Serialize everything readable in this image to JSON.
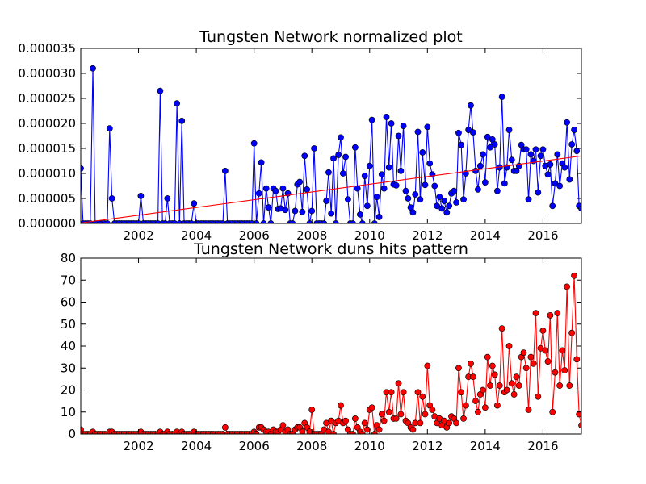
{
  "chart_data": [
    {
      "type": "line",
      "title": "Tungsten Network normalized plot",
      "xlabel": "",
      "ylabel": "",
      "xlim": [
        2000.0,
        2017.33
      ],
      "ylim": [
        0,
        3.5e-05
      ],
      "xticks": [
        2002,
        2004,
        2006,
        2008,
        2010,
        2012,
        2014,
        2016
      ],
      "yticks": [
        "0.000000",
        "0.000005",
        "0.000010",
        "0.000015",
        "0.000020",
        "0.000025",
        "0.000030",
        "0.000035"
      ],
      "grid": false,
      "legend": "none",
      "series": [
        {
          "color": "#0000ff",
          "marker": "circle",
          "x": [
            2000.0,
            2000.08,
            2000.17,
            2000.25,
            2000.33,
            2000.42,
            2000.5,
            2000.58,
            2000.67,
            2000.75,
            2000.83,
            2000.92,
            2001.0,
            2001.08,
            2001.17,
            2001.25,
            2001.33,
            2001.42,
            2001.5,
            2001.58,
            2001.67,
            2001.75,
            2001.83,
            2001.92,
            2002.0,
            2002.08,
            2002.17,
            2002.25,
            2002.33,
            2002.42,
            2002.5,
            2002.58,
            2002.67,
            2002.75,
            2002.83,
            2002.92,
            2003.0,
            2003.08,
            2003.17,
            2003.25,
            2003.33,
            2003.42,
            2003.5,
            2003.58,
            2003.67,
            2003.75,
            2003.83,
            2003.92,
            2004.0,
            2004.08,
            2004.17,
            2004.25,
            2004.33,
            2004.42,
            2004.5,
            2004.58,
            2004.67,
            2004.75,
            2004.83,
            2004.92,
            2005.0,
            2005.08,
            2005.17,
            2005.25,
            2005.33,
            2005.42,
            2005.5,
            2005.58,
            2005.67,
            2005.75,
            2005.83,
            2005.92,
            2006.0,
            2006.08,
            2006.17,
            2006.25,
            2006.33,
            2006.42,
            2006.5,
            2006.58,
            2006.67,
            2006.75,
            2006.83,
            2006.92,
            2007.0,
            2007.08,
            2007.17,
            2007.25,
            2007.33,
            2007.42,
            2007.5,
            2007.58,
            2007.67,
            2007.75,
            2007.83,
            2007.92,
            2008.0,
            2008.08,
            2008.17,
            2008.25,
            2008.33,
            2008.42,
            2008.5,
            2008.58,
            2008.67,
            2008.75,
            2008.83,
            2008.92,
            2009.0,
            2009.08,
            2009.17,
            2009.25,
            2009.33,
            2009.42,
            2009.5,
            2009.58,
            2009.67,
            2009.75,
            2009.83,
            2009.92,
            2010.0,
            2010.08,
            2010.17,
            2010.25,
            2010.33,
            2010.42,
            2010.5,
            2010.58,
            2010.67,
            2010.75,
            2010.83,
            2010.92,
            2011.0,
            2011.08,
            2011.17,
            2011.25,
            2011.33,
            2011.42,
            2011.5,
            2011.58,
            2011.67,
            2011.75,
            2011.83,
            2011.92,
            2012.0,
            2012.08,
            2012.17,
            2012.25,
            2012.33,
            2012.42,
            2012.5,
            2012.58,
            2012.67,
            2012.75,
            2012.83,
            2012.92,
            2013.0,
            2013.08,
            2013.17,
            2013.25,
            2013.33,
            2013.42,
            2013.5,
            2013.58,
            2013.67,
            2013.75,
            2013.83,
            2013.92,
            2014.0,
            2014.08,
            2014.17,
            2014.25,
            2014.33,
            2014.42,
            2014.5,
            2014.58,
            2014.67,
            2014.75,
            2014.83,
            2014.92,
            2015.0,
            2015.08,
            2015.17,
            2015.25,
            2015.33,
            2015.42,
            2015.5,
            2015.58,
            2015.67,
            2015.75,
            2015.83,
            2015.92,
            2016.0,
            2016.08,
            2016.17,
            2016.25,
            2016.33,
            2016.42,
            2016.5,
            2016.58,
            2016.67,
            2016.75,
            2016.83,
            2016.92,
            2017.0,
            2017.08,
            2017.17,
            2017.25,
            2017.33
          ],
          "y": [
            1.1e-05,
            0,
            0,
            0,
            0,
            3.1e-05,
            0,
            0,
            0,
            0,
            0,
            0,
            1.9e-05,
            5e-06,
            0,
            0,
            0,
            0,
            0,
            0,
            0,
            0,
            0,
            0,
            0,
            5.5e-06,
            0,
            0,
            0,
            0,
            0,
            0,
            0,
            2.65e-05,
            0,
            0,
            5e-06,
            0,
            0,
            0,
            2.4e-05,
            0,
            2.05e-05,
            0,
            0,
            0,
            0,
            4e-06,
            0,
            0,
            0,
            0,
            0,
            0,
            0,
            0,
            0,
            0,
            0,
            0,
            1.05e-05,
            0,
            0,
            0,
            0,
            0,
            0,
            0,
            0,
            0,
            0,
            0,
            1.6e-05,
            0,
            6e-06,
            1.22e-05,
            0,
            7e-06,
            3.2e-06,
            0,
            7e-06,
            6.5e-06,
            2.9e-06,
            3e-06,
            7e-06,
            2.7e-06,
            6e-06,
            0,
            0,
            2.5e-06,
            7.8e-06,
            8.3e-06,
            2.3e-06,
            1.35e-05,
            6.8e-06,
            0,
            2.5e-06,
            1.5e-05,
            0,
            0,
            0,
            0,
            4.5e-06,
            1.02e-05,
            2e-06,
            1.3e-05,
            0,
            1.37e-05,
            1.72e-05,
            1e-05,
            1.33e-05,
            4.8e-06,
            0,
            0,
            1.52e-05,
            7e-06,
            1.8e-06,
            0,
            9.5e-06,
            3.5e-06,
            1.15e-05,
            2.07e-05,
            0,
            5.3e-06,
            1.3e-06,
            9.8e-06,
            7e-06,
            2.13e-05,
            1.12e-05,
            2e-05,
            7.8e-06,
            7.6e-06,
            1.75e-05,
            1.05e-05,
            1.95e-05,
            6.5e-06,
            5e-06,
            3.2e-06,
            2.2e-06,
            5.8e-06,
            1.83e-05,
            4.8e-06,
            1.42e-05,
            7.7e-06,
            1.93e-05,
            1.2e-05,
            9.8e-06,
            7.5e-06,
            3.5e-06,
            5.3e-06,
            3e-06,
            4.5e-06,
            2.2e-06,
            3.5e-06,
            6e-06,
            6.5e-06,
            4.2e-06,
            1.81e-05,
            1.57e-05,
            4.8e-06,
            1e-05,
            1.87e-05,
            2.36e-05,
            1.82e-05,
            1.05e-05,
            6.8e-06,
            1.15e-05,
            1.38e-05,
            8.2e-06,
            1.73e-05,
            1.52e-05,
            1.68e-05,
            1.58e-05,
            6.5e-06,
            1.12e-05,
            2.53e-05,
            8e-06,
            1.12e-05,
            1.87e-05,
            1.27e-05,
            1.05e-05,
            1.05e-05,
            1.15e-05,
            1.57e-05,
            1.48e-05,
            1.48e-05,
            4.8e-06,
            1.38e-05,
            1.25e-05,
            1.48e-05,
            6.2e-06,
            1.35e-05,
            1.48e-05,
            1.15e-05,
            9.8e-06,
            1.18e-05,
            3.5e-06,
            8e-06,
            1.38e-05,
            7.5e-06,
            1.2e-05,
            1.12e-05,
            2.02e-05,
            8.8e-06,
            1.58e-05,
            1.87e-05,
            1.45e-05,
            3.5e-06,
            3e-06
          ]
        },
        {
          "color": "#ff0000",
          "marker": "none",
          "x": [
            2000.0,
            2017.33
          ],
          "y": [
            1e-07,
            1.35e-05
          ]
        }
      ]
    },
    {
      "type": "line",
      "title": "Tungsten Network duns hits pattern",
      "xlabel": "",
      "ylabel": "",
      "xlim": [
        2000.0,
        2017.33
      ],
      "ylim": [
        0,
        80
      ],
      "xticks": [
        2002,
        2004,
        2006,
        2008,
        2010,
        2012,
        2014,
        2016
      ],
      "yticks": [
        "0",
        "10",
        "20",
        "30",
        "40",
        "50",
        "60",
        "70",
        "80"
      ],
      "grid": false,
      "legend": "none",
      "series": [
        {
          "color": "#ff0000",
          "marker": "circle",
          "x": [
            2000.0,
            2000.08,
            2000.17,
            2000.25,
            2000.33,
            2000.42,
            2000.5,
            2000.58,
            2000.67,
            2000.75,
            2000.83,
            2000.92,
            2001.0,
            2001.08,
            2001.17,
            2001.25,
            2001.33,
            2001.42,
            2001.5,
            2001.58,
            2001.67,
            2001.75,
            2001.83,
            2001.92,
            2002.0,
            2002.08,
            2002.17,
            2002.25,
            2002.33,
            2002.42,
            2002.5,
            2002.58,
            2002.67,
            2002.75,
            2002.83,
            2002.92,
            2003.0,
            2003.08,
            2003.17,
            2003.25,
            2003.33,
            2003.42,
            2003.5,
            2003.58,
            2003.67,
            2003.75,
            2003.83,
            2003.92,
            2004.0,
            2004.08,
            2004.17,
            2004.25,
            2004.33,
            2004.42,
            2004.5,
            2004.58,
            2004.67,
            2004.75,
            2004.83,
            2004.92,
            2005.0,
            2005.08,
            2005.17,
            2005.25,
            2005.33,
            2005.42,
            2005.5,
            2005.58,
            2005.67,
            2005.75,
            2005.83,
            2005.92,
            2006.0,
            2006.08,
            2006.17,
            2006.25,
            2006.33,
            2006.42,
            2006.5,
            2006.58,
            2006.67,
            2006.75,
            2006.83,
            2006.92,
            2007.0,
            2007.08,
            2007.17,
            2007.25,
            2007.33,
            2007.42,
            2007.5,
            2007.58,
            2007.67,
            2007.75,
            2007.83,
            2007.92,
            2008.0,
            2008.08,
            2008.17,
            2008.25,
            2008.33,
            2008.42,
            2008.5,
            2008.58,
            2008.67,
            2008.75,
            2008.83,
            2008.92,
            2009.0,
            2009.08,
            2009.17,
            2009.25,
            2009.33,
            2009.42,
            2009.5,
            2009.58,
            2009.67,
            2009.75,
            2009.83,
            2009.92,
            2010.0,
            2010.08,
            2010.17,
            2010.25,
            2010.33,
            2010.42,
            2010.5,
            2010.58,
            2010.67,
            2010.75,
            2010.83,
            2010.92,
            2011.0,
            2011.08,
            2011.17,
            2011.25,
            2011.33,
            2011.42,
            2011.5,
            2011.58,
            2011.67,
            2011.75,
            2011.83,
            2011.92,
            2012.0,
            2012.08,
            2012.17,
            2012.25,
            2012.33,
            2012.42,
            2012.5,
            2012.58,
            2012.67,
            2012.75,
            2012.83,
            2012.92,
            2013.0,
            2013.08,
            2013.17,
            2013.25,
            2013.33,
            2013.42,
            2013.5,
            2013.58,
            2013.67,
            2013.75,
            2013.83,
            2013.92,
            2014.0,
            2014.08,
            2014.17,
            2014.25,
            2014.33,
            2014.42,
            2014.5,
            2014.58,
            2014.67,
            2014.75,
            2014.83,
            2014.92,
            2015.0,
            2015.08,
            2015.17,
            2015.25,
            2015.33,
            2015.42,
            2015.5,
            2015.58,
            2015.67,
            2015.75,
            2015.83,
            2015.92,
            2016.0,
            2016.08,
            2016.17,
            2016.25,
            2016.33,
            2016.42,
            2016.5,
            2016.58,
            2016.67,
            2016.75,
            2016.83,
            2016.92,
            2017.0,
            2017.08,
            2017.17,
            2017.25,
            2017.33
          ],
          "y": [
            2,
            0,
            0,
            0,
            0,
            1,
            0,
            0,
            0,
            0,
            0,
            0,
            1,
            1,
            0,
            0,
            0,
            0,
            0,
            0,
            0,
            0,
            0,
            0,
            0,
            1,
            0,
            0,
            0,
            0,
            0,
            0,
            0,
            1,
            0,
            0,
            1,
            0,
            0,
            0,
            1,
            0,
            1,
            0,
            0,
            0,
            0,
            1,
            0,
            0,
            0,
            0,
            0,
            0,
            0,
            0,
            0,
            0,
            0,
            0,
            3,
            0,
            0,
            0,
            0,
            0,
            0,
            0,
            0,
            0,
            0,
            0,
            1,
            0,
            3,
            3,
            2,
            1,
            1,
            0,
            2,
            1,
            1,
            2,
            4,
            1,
            2,
            0,
            0,
            2,
            3,
            3,
            1,
            5,
            3,
            1,
            11,
            0,
            0,
            0,
            0,
            2,
            5,
            1,
            6,
            0,
            5,
            6,
            13,
            5,
            6,
            2,
            0,
            0,
            7,
            3,
            1,
            0,
            5,
            2,
            11,
            12,
            0,
            4,
            2,
            9,
            6,
            19,
            10,
            19,
            7,
            7,
            23,
            9,
            19,
            6,
            5,
            3,
            2,
            5,
            19,
            5,
            17,
            9,
            31,
            13,
            11,
            8,
            5,
            7,
            4,
            6,
            3,
            5,
            8,
            7,
            5,
            30,
            19,
            7,
            13,
            26,
            32,
            26,
            15,
            10,
            18,
            20,
            12,
            35,
            22,
            31,
            27,
            13,
            22,
            48,
            19,
            20,
            40,
            23,
            18,
            26,
            22,
            35,
            37,
            30,
            11,
            35,
            32,
            55,
            17,
            39,
            47,
            38,
            33,
            54,
            10,
            28,
            55,
            22,
            38,
            29,
            67,
            22,
            46,
            72,
            34,
            9,
            4
          ]
        }
      ]
    }
  ]
}
